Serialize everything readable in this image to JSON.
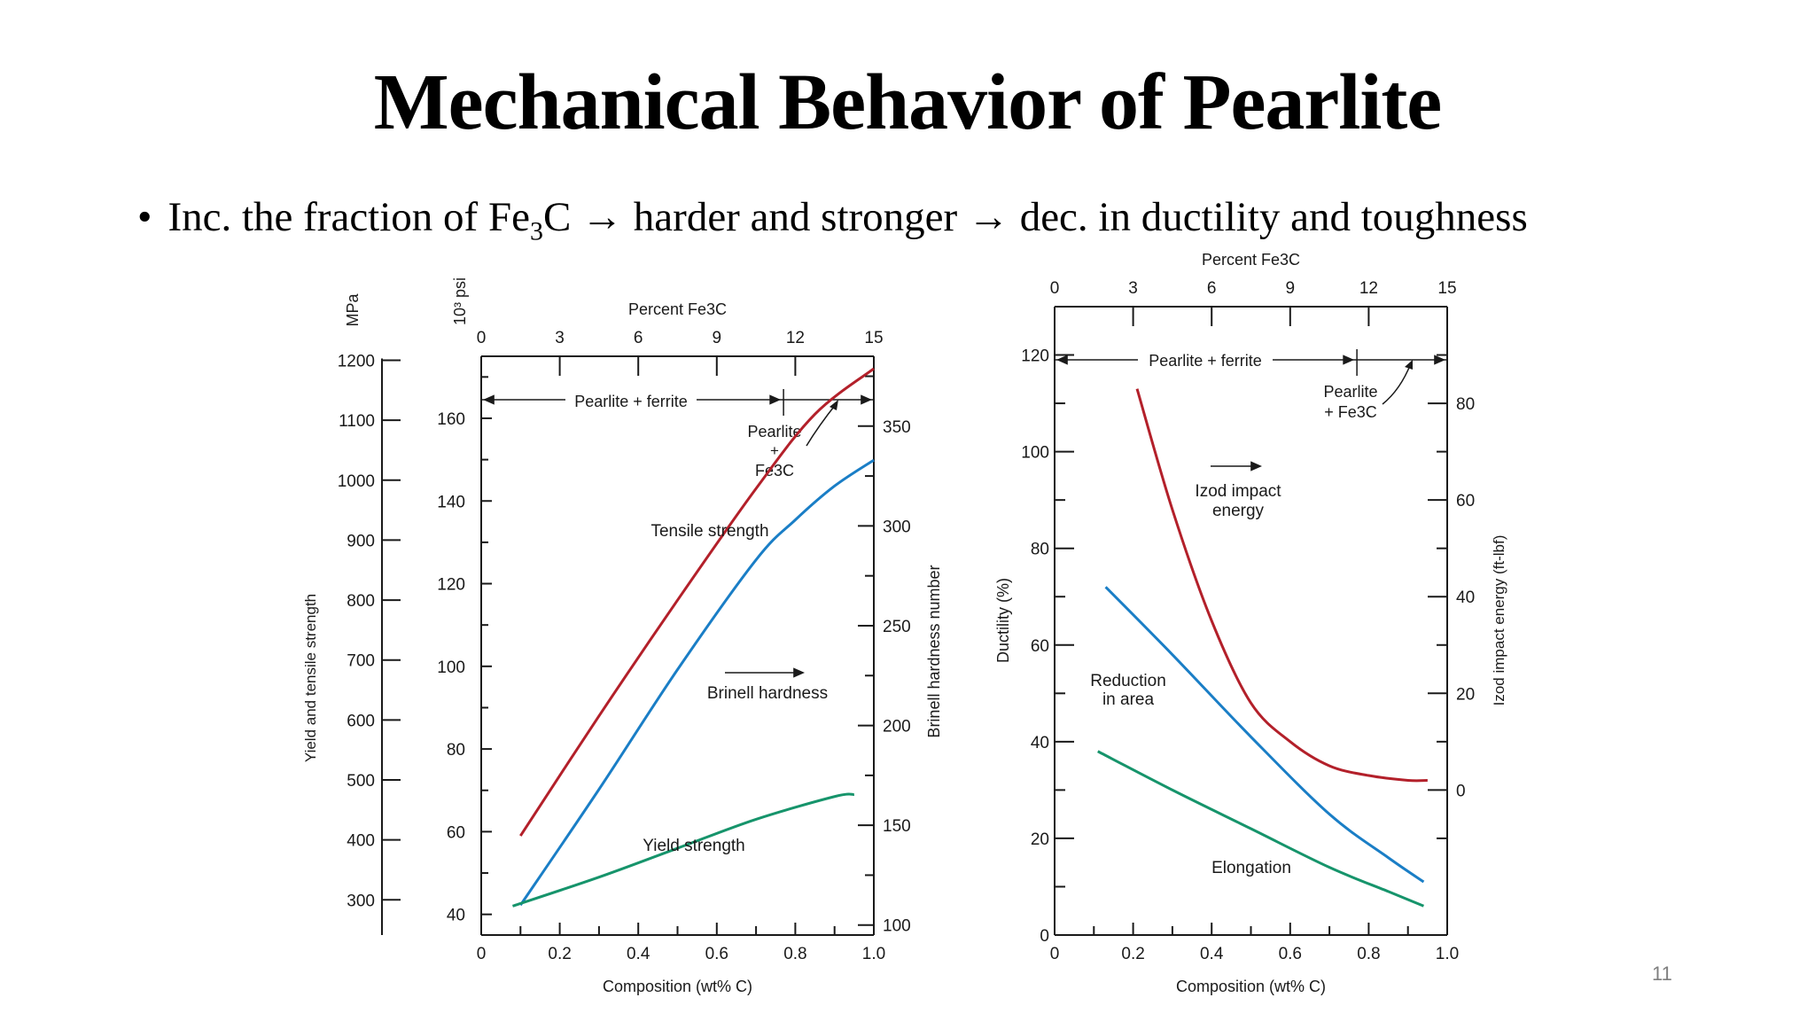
{
  "slide": {
    "title": "Mechanical Behavior of Pearlite",
    "bullet_prefix": "Inc. the fraction of Fe",
    "bullet_sub": "3",
    "bullet_suffix": "C → harder and stronger → dec. in ductility and toughness",
    "page_number": "11"
  },
  "colors": {
    "red": "#b3202a",
    "blue": "#1a7ec6",
    "green": "#16946b",
    "axis": "#1a1a1a"
  },
  "chart_data": [
    {
      "type": "line",
      "name": "strength-hardness-chart",
      "xlabel": "Composition (wt% C)",
      "top_axis_label": "Percent Fe3C",
      "xlim": [
        0,
        1.0
      ],
      "xticks": [
        "0",
        "0.2",
        "0.4",
        "0.6",
        "0.8",
        "1.0"
      ],
      "top_ticks": [
        "0",
        "3",
        "6",
        "9",
        "12",
        "15"
      ],
      "left_axis_mpa": {
        "label": "MPa",
        "ticks": [
          "1200",
          "1100",
          "1000",
          "900",
          "800",
          "700",
          "600",
          "500",
          "400",
          "300"
        ]
      },
      "left_axis_psi": {
        "label": "10³ psi",
        "ticks": [
          "160",
          "140",
          "120",
          "100",
          "80",
          "60",
          "40"
        ],
        "ylim": [
          35,
          175
        ]
      },
      "right_axis": {
        "label": "Brinell hardness number",
        "ticks": [
          "350",
          "300",
          "250",
          "200",
          "150",
          "100"
        ],
        "ylim": [
          95,
          385
        ]
      },
      "yaxis_label": "Yield and tensile strength",
      "region_labels": {
        "pearlite_ferrite": "Pearlite + ferrite",
        "pearlite_fe3c_line1": "Pearlite",
        "pearlite_fe3c_line2": "+",
        "pearlite_fe3c_line3": "Fe3C"
      },
      "series": [
        {
          "name": "Tensile strength",
          "axis": "psi",
          "color": "#b3202a",
          "x": [
            0.1,
            0.3,
            0.5,
            0.7,
            0.85,
            1.0
          ],
          "y": [
            59,
            88,
            116,
            143,
            161,
            172
          ]
        },
        {
          "name": "Brinell hardness",
          "axis": "brinell",
          "color": "#1a7ec6",
          "x": [
            0.1,
            0.3,
            0.5,
            0.7,
            0.8,
            0.9,
            1.0
          ],
          "y": [
            110,
            168,
            228,
            283,
            303,
            320,
            333
          ]
        },
        {
          "name": "Yield strength",
          "axis": "psi",
          "color": "#16946b",
          "x": [
            0.08,
            0.3,
            0.5,
            0.7,
            0.9,
            0.95
          ],
          "y": [
            42,
            49,
            56,
            63,
            68.5,
            69
          ]
        }
      ],
      "annotations": {
        "arrow_right": "→"
      }
    },
    {
      "type": "line",
      "name": "ductility-toughness-chart",
      "xlabel": "Composition (wt% C)",
      "top_axis_label": "Percent Fe3C",
      "xlim": [
        0,
        1.0
      ],
      "xticks": [
        "0",
        "0.2",
        "0.4",
        "0.6",
        "0.8",
        "1.0"
      ],
      "top_ticks": [
        "0",
        "3",
        "6",
        "9",
        "12",
        "15"
      ],
      "left_axis": {
        "label": "Ductility (%)",
        "ticks": [
          "120",
          "100",
          "80",
          "60",
          "40",
          "20",
          "0"
        ],
        "ylim": [
          0,
          130
        ]
      },
      "right_axis": {
        "label": "Izod impact energy (ft-lbf)",
        "ticks": [
          "80",
          "60",
          "40",
          "20",
          "0"
        ],
        "ylim": [
          -30,
          100
        ]
      },
      "region_labels": {
        "pearlite_ferrite": "Pearlite + ferrite",
        "pearlite_fe3c_line1": "Pearlite",
        "pearlite_fe3c_line2": "+ Fe3C"
      },
      "series": [
        {
          "name": "Izod impact energy",
          "axis": "izod",
          "color": "#b3202a",
          "x": [
            0.21,
            0.3,
            0.4,
            0.5,
            0.6,
            0.7,
            0.8,
            0.9,
            0.95
          ],
          "y": [
            83,
            58,
            35,
            18,
            10,
            5,
            3,
            2,
            2
          ]
        },
        {
          "name": "Reduction in area",
          "axis": "ductility",
          "color": "#1a7ec6",
          "x": [
            0.13,
            0.3,
            0.5,
            0.7,
            0.85,
            0.94
          ],
          "y": [
            72,
            58,
            41,
            25,
            16,
            11
          ]
        },
        {
          "name": "Elongation",
          "axis": "ductility",
          "color": "#16946b",
          "x": [
            0.11,
            0.3,
            0.5,
            0.7,
            0.85,
            0.94
          ],
          "y": [
            38,
            30,
            22,
            14,
            9,
            6
          ]
        }
      ],
      "label_izod_line1": "Izod impact",
      "label_izod_line2": "energy",
      "label_reduction_line1": "Reduction",
      "label_reduction_line2": "in area",
      "label_elongation": "Elongation"
    }
  ]
}
